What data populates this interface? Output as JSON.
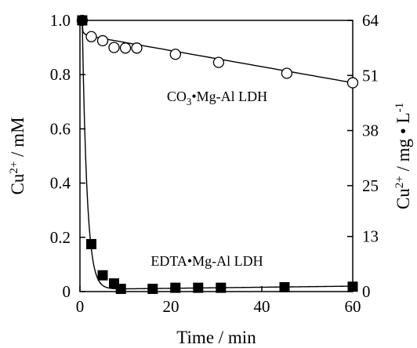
{
  "chart_data": {
    "type": "scatter",
    "xlabel": "Time / min",
    "ylabel_left": "Cu2+ / mM",
    "ylabel_right": "Cu2+ / mg • L-1",
    "xlim": [
      0,
      60
    ],
    "ylim_left": [
      0,
      1.0
    ],
    "ylim_right": [
      0,
      64
    ],
    "x_ticks": [
      0,
      20,
      40,
      60
    ],
    "y_ticks_left": [
      0,
      0.2,
      0.4,
      0.6,
      0.8,
      1.0
    ],
    "y_tick_labels_left": [
      "0",
      "0.2",
      "0.4",
      "0.6",
      "0.8",
      "1.0"
    ],
    "y_tick_labels_right": [
      "0",
      "13",
      "25",
      "38",
      "51",
      "64"
    ],
    "grid": false,
    "series": [
      {
        "marker": "open-circle",
        "points": [
          [
            0.5,
            1.0
          ],
          [
            2.5,
            0.94
          ],
          [
            5,
            0.925
          ],
          [
            7.5,
            0.9
          ],
          [
            10,
            0.898
          ],
          [
            12.5,
            0.898
          ],
          [
            21,
            0.875
          ],
          [
            30.5,
            0.845
          ],
          [
            45.5,
            0.805
          ],
          [
            60,
            0.77
          ]
        ]
      },
      {
        "marker": "filled-square",
        "points": [
          [
            0.5,
            1.0
          ],
          [
            2.5,
            0.175
          ],
          [
            5,
            0.06
          ],
          [
            7.5,
            0.03
          ],
          [
            9,
            0.01
          ],
          [
            16,
            0.01
          ],
          [
            21,
            0.014
          ],
          [
            26,
            0.014
          ],
          [
            31,
            0.014
          ],
          [
            45,
            0.016
          ],
          [
            60,
            0.018
          ]
        ]
      }
    ],
    "annotations": [
      {
        "text": "CO3•Mg-Al LDH",
        "x": 35,
        "y": 0.7
      },
      {
        "text": "EDTA•Mg-Al LDH",
        "x": 33,
        "y": 0.09
      }
    ]
  }
}
